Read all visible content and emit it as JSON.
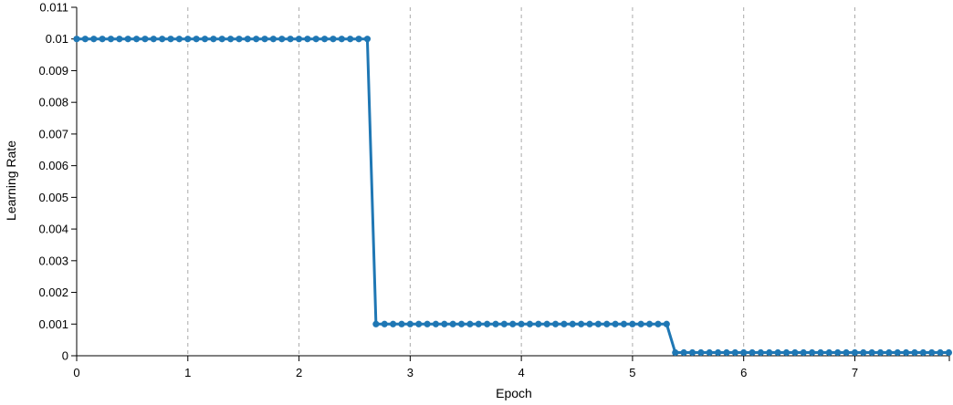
{
  "chart_data": {
    "type": "line",
    "xlabel": "Epoch",
    "ylabel": "Learning Rate",
    "xlim": [
      0,
      7.85
    ],
    "ylim": [
      0,
      0.011
    ],
    "x_ticks": [
      "0",
      "1",
      "2",
      "3",
      "4",
      "5",
      "6",
      "7"
    ],
    "y_ticks": [
      "0",
      "0.001",
      "0.002",
      "0.003",
      "0.004",
      "0.005",
      "0.006",
      "0.007",
      "0.008",
      "0.009",
      "0.01",
      "0.011"
    ],
    "vertical_grid": true,
    "grid_style": "dashed",
    "line_color": "#1f77b4",
    "series": [
      {
        "step": 0.0769,
        "segments": [
          {
            "x_start": 0.0,
            "count": 35,
            "value": 0.01
          },
          {
            "x_start": 2.6923,
            "count": 35,
            "value": 0.001
          },
          {
            "x_start": 5.3846,
            "count": 33,
            "value": 0.0001
          }
        ]
      }
    ]
  }
}
